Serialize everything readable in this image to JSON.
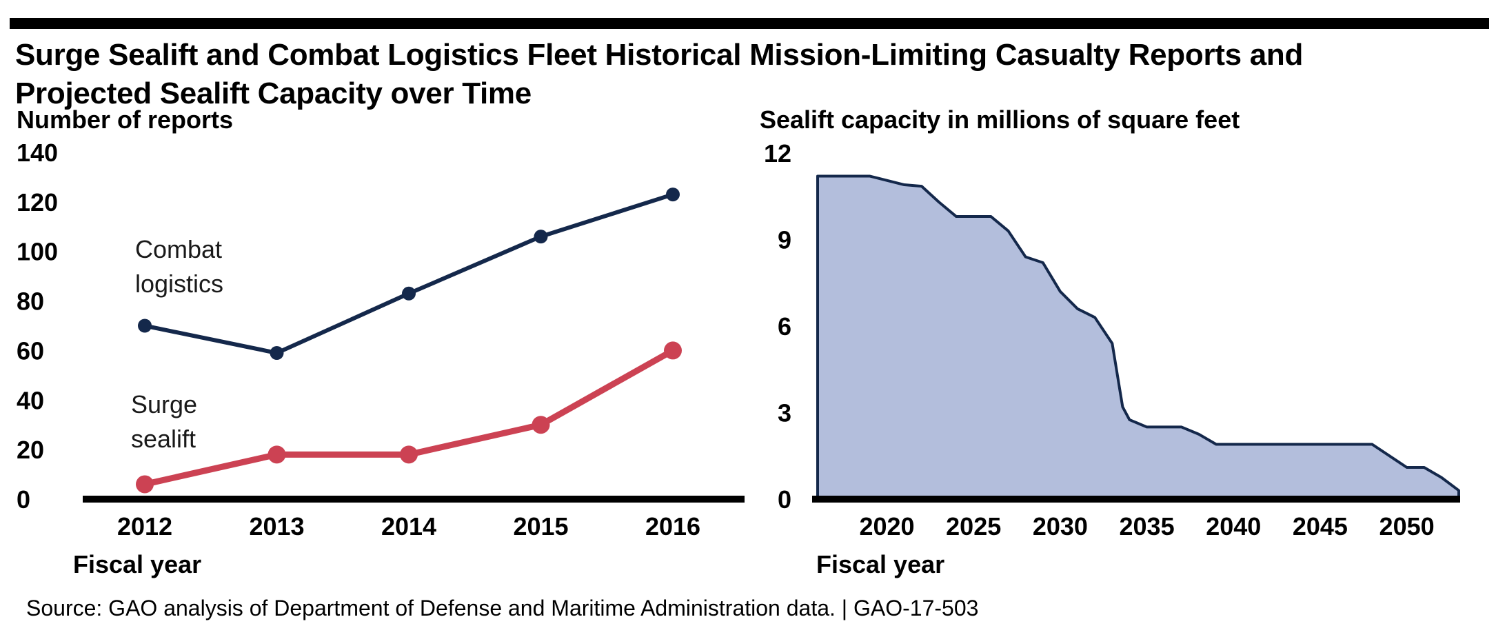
{
  "title": {
    "line1": "Surge Sealift and Combat Logistics Fleet Historical Mission-Limiting Casualty Reports and",
    "line2": "Projected Sealift Capacity over Time"
  },
  "source": "Source: GAO analysis of Department of Defense and Maritime Administration data.  |  GAO-17-503",
  "colors": {
    "combat": "#14284b",
    "surge": "#cc4253",
    "area_fill": "#b3bedc",
    "area_line": "#14284b",
    "axis": "#000000"
  },
  "chart_data": [
    {
      "type": "line",
      "ylabel": "Number of reports",
      "xlabel": "Fiscal year",
      "categories": [
        "2012",
        "2013",
        "2014",
        "2015",
        "2016"
      ],
      "ylim": [
        0,
        140
      ],
      "yticks": [
        0,
        20,
        40,
        60,
        80,
        100,
        120,
        140
      ],
      "grid": false,
      "series": [
        {
          "name": "Combat logistics",
          "label_lines": [
            "Combat",
            "logistics"
          ],
          "values": [
            70,
            59,
            83,
            106,
            123
          ]
        },
        {
          "name": "Surge sealift",
          "label_lines": [
            "Surge",
            "sealift"
          ],
          "values": [
            6,
            18,
            18,
            30,
            60
          ]
        }
      ]
    },
    {
      "type": "area",
      "ylabel": "Sealift capacity in millions of square feet",
      "xlabel": "Fiscal year",
      "xlim": [
        2016,
        2053
      ],
      "xticks": [
        2020,
        2025,
        2030,
        2035,
        2040,
        2045,
        2050
      ],
      "ylim": [
        0,
        12
      ],
      "yticks": [
        0,
        3,
        6,
        9,
        12
      ],
      "grid": false,
      "x": [
        2016,
        2019,
        2021,
        2022,
        2023,
        2024,
        2026,
        2027,
        2028,
        2029,
        2030,
        2031,
        2032,
        2033,
        2033.6,
        2034,
        2035,
        2037,
        2038,
        2039,
        2041,
        2045,
        2048,
        2050,
        2051,
        2052,
        2053
      ],
      "y": [
        11.2,
        11.2,
        10.9,
        10.85,
        10.3,
        9.8,
        9.8,
        9.3,
        8.4,
        8.2,
        7.2,
        6.6,
        6.3,
        5.4,
        3.2,
        2.75,
        2.5,
        2.5,
        2.25,
        1.9,
        1.9,
        1.9,
        1.9,
        1.1,
        1.1,
        0.75,
        0.3
      ]
    }
  ]
}
